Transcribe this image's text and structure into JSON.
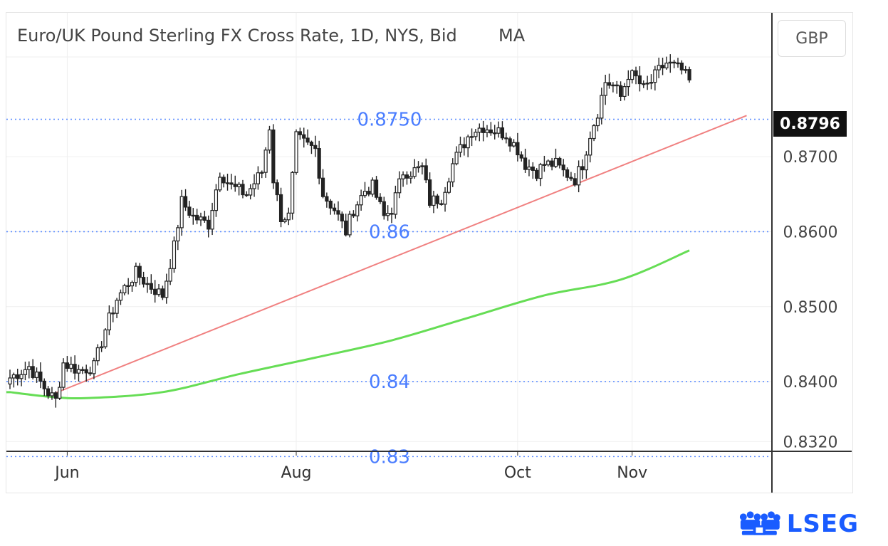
{
  "chart_data": {
    "type": "candlestick",
    "title": "Euro/UK Pound Sterling FX Cross Rate, 1D, NYS, Bid",
    "indicator": "MA",
    "currency": "GBP",
    "last_price_label": "0.8796",
    "ylim": [
      0.8307,
      0.8892
    ],
    "y_ticks": [
      {
        "value": 0.87,
        "label": "0.8700"
      },
      {
        "value": 0.86,
        "label": "0.8600"
      },
      {
        "value": 0.85,
        "label": "0.8500"
      },
      {
        "value": 0.84,
        "label": "0.8400"
      },
      {
        "value": 0.832,
        "label": "0.8320"
      }
    ],
    "x_ticks": [
      {
        "index": 15,
        "label": "Jun"
      },
      {
        "index": 75,
        "label": "Aug"
      },
      {
        "index": 133,
        "label": "Oct"
      },
      {
        "index": 163,
        "label": "Nov"
      }
    ],
    "levels": [
      {
        "value": 0.875,
        "label": "0.8750"
      },
      {
        "value": 0.86,
        "label": "0.86"
      },
      {
        "value": 0.84,
        "label": "0.84"
      },
      {
        "value": 0.83,
        "label": "0.83"
      }
    ],
    "trendline": {
      "start": [
        12,
        0.8385
      ],
      "end": [
        193,
        0.8755
      ],
      "color": "#f08080"
    },
    "moving_average": {
      "color": "#66dd55",
      "points": [
        [
          0,
          0.8386
        ],
        [
          10,
          0.838
        ],
        [
          20,
          0.8378
        ],
        [
          40,
          0.8386
        ],
        [
          60,
          0.841
        ],
        [
          80,
          0.8432
        ],
        [
          100,
          0.8455
        ],
        [
          120,
          0.8485
        ],
        [
          140,
          0.8515
        ],
        [
          160,
          0.8536
        ],
        [
          178,
          0.8575
        ]
      ]
    },
    "candle_anchors": [
      [
        0,
        0.8405
      ],
      [
        5,
        0.842
      ],
      [
        10,
        0.8385
      ],
      [
        12,
        0.8375
      ],
      [
        14,
        0.8425
      ],
      [
        18,
        0.8415
      ],
      [
        22,
        0.842
      ],
      [
        25,
        0.847
      ],
      [
        28,
        0.851
      ],
      [
        30,
        0.8525
      ],
      [
        33,
        0.8545
      ],
      [
        36,
        0.853
      ],
      [
        40,
        0.8515
      ],
      [
        43,
        0.858
      ],
      [
        45,
        0.864
      ],
      [
        48,
        0.862
      ],
      [
        52,
        0.861
      ],
      [
        55,
        0.868
      ],
      [
        58,
        0.866
      ],
      [
        60,
        0.8655
      ],
      [
        62,
        0.865
      ],
      [
        66,
        0.868
      ],
      [
        68,
        0.874
      ],
      [
        69,
        0.867
      ],
      [
        71,
        0.862
      ],
      [
        73,
        0.862
      ],
      [
        75,
        0.8725
      ],
      [
        78,
        0.8715
      ],
      [
        80,
        0.871
      ],
      [
        82,
        0.865
      ],
      [
        85,
        0.863
      ],
      [
        88,
        0.86
      ],
      [
        90,
        0.863
      ],
      [
        93,
        0.8655
      ],
      [
        95,
        0.866
      ],
      [
        98,
        0.862
      ],
      [
        100,
        0.863
      ],
      [
        103,
        0.868
      ],
      [
        105,
        0.868
      ],
      [
        108,
        0.8685
      ],
      [
        110,
        0.864
      ],
      [
        113,
        0.8645
      ],
      [
        116,
        0.869
      ],
      [
        118,
        0.871
      ],
      [
        121,
        0.8735
      ],
      [
        124,
        0.874
      ],
      [
        127,
        0.8735
      ],
      [
        130,
        0.873
      ],
      [
        133,
        0.871
      ],
      [
        135,
        0.869
      ],
      [
        138,
        0.868
      ],
      [
        140,
        0.869
      ],
      [
        143,
        0.869
      ],
      [
        145,
        0.868
      ],
      [
        148,
        0.867
      ],
      [
        150,
        0.869
      ],
      [
        152,
        0.873
      ],
      [
        154,
        0.876
      ],
      [
        156,
        0.88
      ],
      [
        158,
        0.8795
      ],
      [
        160,
        0.878
      ],
      [
        162,
        0.881
      ],
      [
        164,
        0.8805
      ],
      [
        166,
        0.879
      ],
      [
        168,
        0.88
      ],
      [
        170,
        0.8815
      ],
      [
        172,
        0.8825
      ],
      [
        174,
        0.882
      ],
      [
        176,
        0.8815
      ],
      [
        178,
        0.88
      ]
    ]
  }
}
